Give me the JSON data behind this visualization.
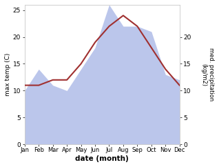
{
  "months": [
    "Jan",
    "Feb",
    "Mar",
    "Apr",
    "May",
    "Jun",
    "Jul",
    "Aug",
    "Sep",
    "Oct",
    "Nov",
    "Dec"
  ],
  "temp": [
    11,
    11,
    12,
    12,
    15,
    19,
    22,
    24,
    22,
    18,
    14,
    11
  ],
  "precip": [
    10,
    14,
    11,
    10,
    14,
    18,
    26,
    22,
    22,
    21,
    13,
    12
  ],
  "temp_color": "#a03030",
  "precip_color": "#b0bce8",
  "ylabel_left": "max temp (C)",
  "ylabel_right": "med. precipitation\n(kg/m2)",
  "xlabel": "date (month)",
  "ylim_left": [
    0,
    26
  ],
  "ylim_right": [
    0,
    26
  ],
  "yticks_left": [
    0,
    5,
    10,
    15,
    20,
    25
  ],
  "yticks_right": [
    0,
    5,
    10,
    15,
    20
  ],
  "background_color": "#ffffff"
}
